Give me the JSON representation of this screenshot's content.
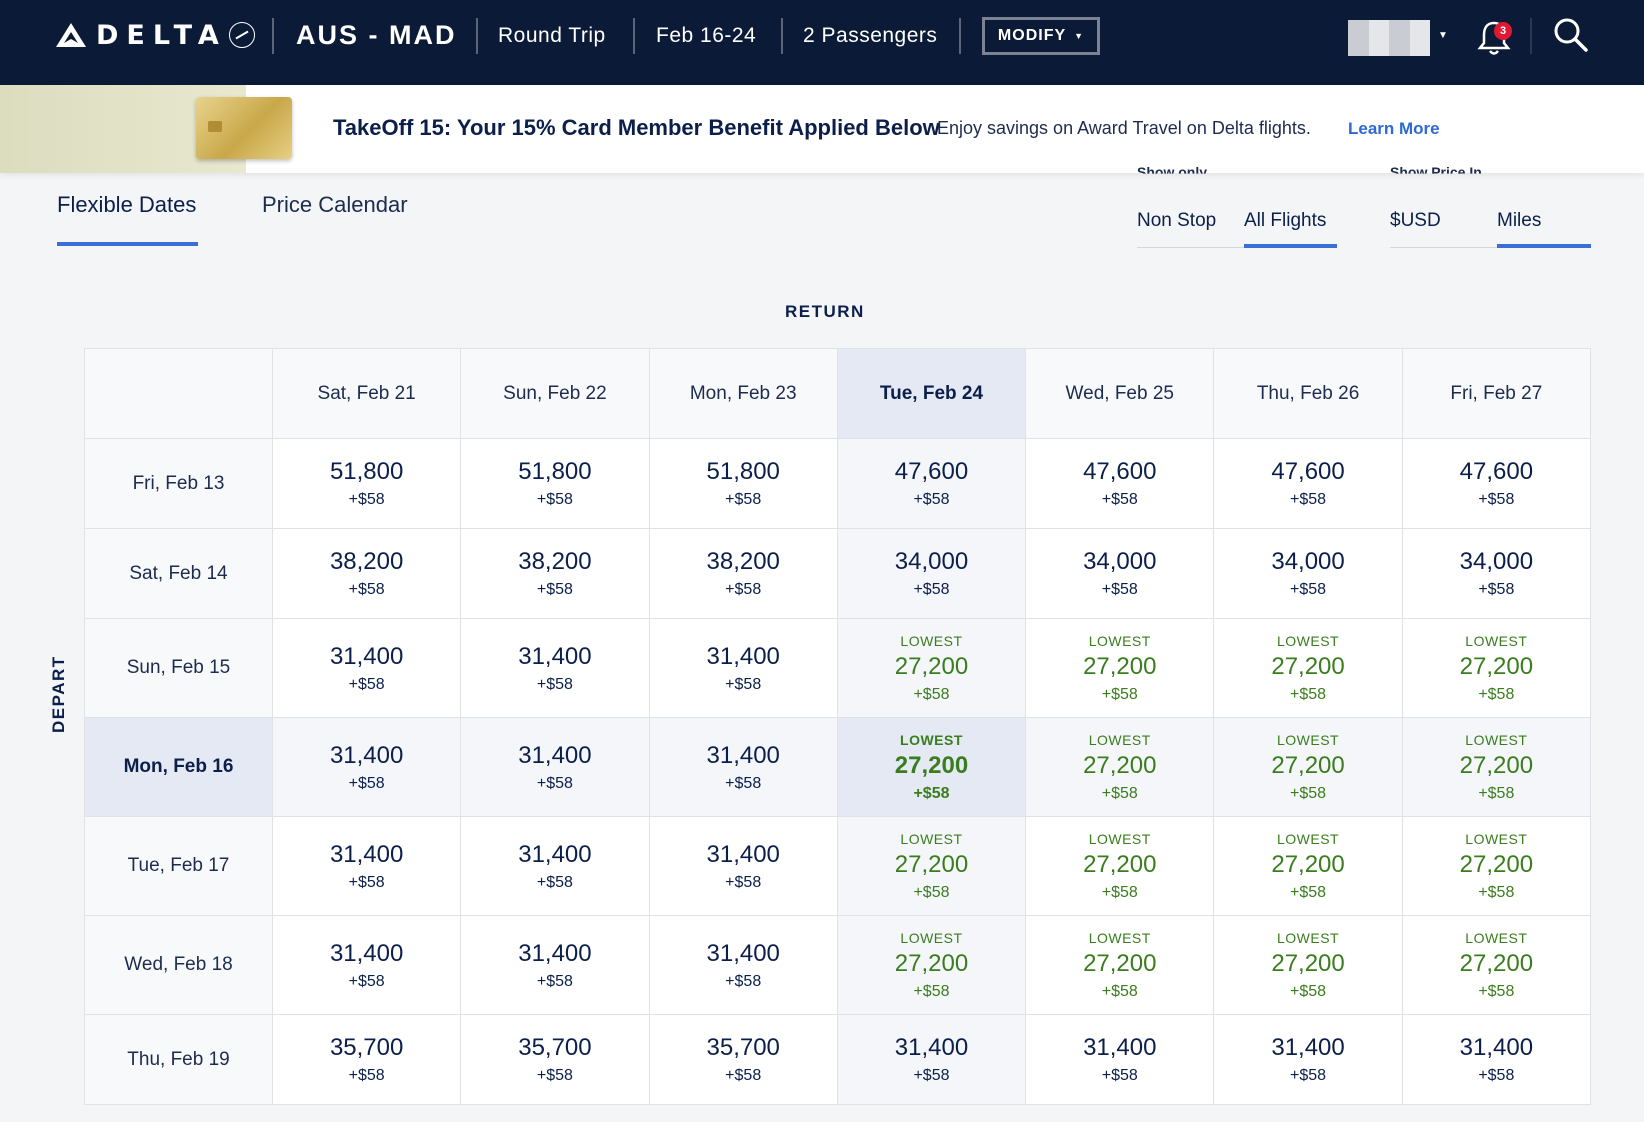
{
  "header": {
    "brand": "DELTA",
    "route": "AUS - MAD",
    "trip_type": "Round Trip",
    "dates": "Feb 16-24",
    "passengers": "2 Passengers",
    "modify_label": "MODIFY",
    "notification_count": "3"
  },
  "banner": {
    "title": "TakeOff 15: Your 15% Card Member Benefit Applied Below",
    "description": "Enjoy savings on Award Travel on Delta flights.",
    "link": "Learn More"
  },
  "tabs": [
    {
      "label": "Flexible Dates",
      "active": true
    },
    {
      "label": "Price Calendar",
      "active": false
    }
  ],
  "filters": {
    "show_only": {
      "label": "Show only",
      "options": [
        {
          "label": "Non Stop",
          "active": false
        },
        {
          "label": "All Flights",
          "active": true
        }
      ]
    },
    "show_price_in": {
      "label": "Show Price In",
      "options": [
        {
          "label": "$USD",
          "active": false
        },
        {
          "label": "Miles",
          "active": true
        }
      ]
    }
  },
  "grid": {
    "return_label": "RETURN",
    "depart_label": "DEPART",
    "lowest_label": "LOWEST",
    "return_dates": [
      "Sat, Feb 21",
      "Sun, Feb 22",
      "Mon, Feb 23",
      "Tue, Feb 24",
      "Wed, Feb 25",
      "Thu, Feb 26",
      "Fri, Feb 27"
    ],
    "selected_return": 3,
    "selected_depart": 3,
    "rows": [
      {
        "depart": "Fri, Feb 13",
        "cells": [
          {
            "miles": "51,800",
            "fee": "+$58"
          },
          {
            "miles": "51,800",
            "fee": "+$58"
          },
          {
            "miles": "51,800",
            "fee": "+$58"
          },
          {
            "miles": "47,600",
            "fee": "+$58"
          },
          {
            "miles": "47,600",
            "fee": "+$58"
          },
          {
            "miles": "47,600",
            "fee": "+$58"
          },
          {
            "miles": "47,600",
            "fee": "+$58"
          }
        ]
      },
      {
        "depart": "Sat, Feb 14",
        "cells": [
          {
            "miles": "38,200",
            "fee": "+$58"
          },
          {
            "miles": "38,200",
            "fee": "+$58"
          },
          {
            "miles": "38,200",
            "fee": "+$58"
          },
          {
            "miles": "34,000",
            "fee": "+$58"
          },
          {
            "miles": "34,000",
            "fee": "+$58"
          },
          {
            "miles": "34,000",
            "fee": "+$58"
          },
          {
            "miles": "34,000",
            "fee": "+$58"
          }
        ]
      },
      {
        "depart": "Sun, Feb 15",
        "cells": [
          {
            "miles": "31,400",
            "fee": "+$58"
          },
          {
            "miles": "31,400",
            "fee": "+$58"
          },
          {
            "miles": "31,400",
            "fee": "+$58"
          },
          {
            "miles": "27,200",
            "fee": "+$58",
            "lowest": true
          },
          {
            "miles": "27,200",
            "fee": "+$58",
            "lowest": true
          },
          {
            "miles": "27,200",
            "fee": "+$58",
            "lowest": true
          },
          {
            "miles": "27,200",
            "fee": "+$58",
            "lowest": true
          }
        ]
      },
      {
        "depart": "Mon, Feb 16",
        "cells": [
          {
            "miles": "31,400",
            "fee": "+$58"
          },
          {
            "miles": "31,400",
            "fee": "+$58"
          },
          {
            "miles": "31,400",
            "fee": "+$58"
          },
          {
            "miles": "27,200",
            "fee": "+$58",
            "lowest": true
          },
          {
            "miles": "27,200",
            "fee": "+$58",
            "lowest": true
          },
          {
            "miles": "27,200",
            "fee": "+$58",
            "lowest": true
          },
          {
            "miles": "27,200",
            "fee": "+$58",
            "lowest": true
          }
        ]
      },
      {
        "depart": "Tue, Feb 17",
        "cells": [
          {
            "miles": "31,400",
            "fee": "+$58"
          },
          {
            "miles": "31,400",
            "fee": "+$58"
          },
          {
            "miles": "31,400",
            "fee": "+$58"
          },
          {
            "miles": "27,200",
            "fee": "+$58",
            "lowest": true
          },
          {
            "miles": "27,200",
            "fee": "+$58",
            "lowest": true
          },
          {
            "miles": "27,200",
            "fee": "+$58",
            "lowest": true
          },
          {
            "miles": "27,200",
            "fee": "+$58",
            "lowest": true
          }
        ]
      },
      {
        "depart": "Wed, Feb 18",
        "cells": [
          {
            "miles": "31,400",
            "fee": "+$58"
          },
          {
            "miles": "31,400",
            "fee": "+$58"
          },
          {
            "miles": "31,400",
            "fee": "+$58"
          },
          {
            "miles": "27,200",
            "fee": "+$58",
            "lowest": true
          },
          {
            "miles": "27,200",
            "fee": "+$58",
            "lowest": true
          },
          {
            "miles": "27,200",
            "fee": "+$58",
            "lowest": true
          },
          {
            "miles": "27,200",
            "fee": "+$58",
            "lowest": true
          }
        ]
      },
      {
        "depart": "Thu, Feb 19",
        "cells": [
          {
            "miles": "35,700",
            "fee": "+$58"
          },
          {
            "miles": "35,700",
            "fee": "+$58"
          },
          {
            "miles": "35,700",
            "fee": "+$58"
          },
          {
            "miles": "31,400",
            "fee": "+$58"
          },
          {
            "miles": "31,400",
            "fee": "+$58"
          },
          {
            "miles": "31,400",
            "fee": "+$58"
          },
          {
            "miles": "31,400",
            "fee": "+$58"
          }
        ]
      }
    ]
  },
  "colors": {
    "header_bg": "#0b1a36",
    "accent_blue": "#3c6fd6",
    "lowest_green": "#3a7d1e",
    "text_navy": "#0b1f4a",
    "badge_red": "#e01933"
  }
}
